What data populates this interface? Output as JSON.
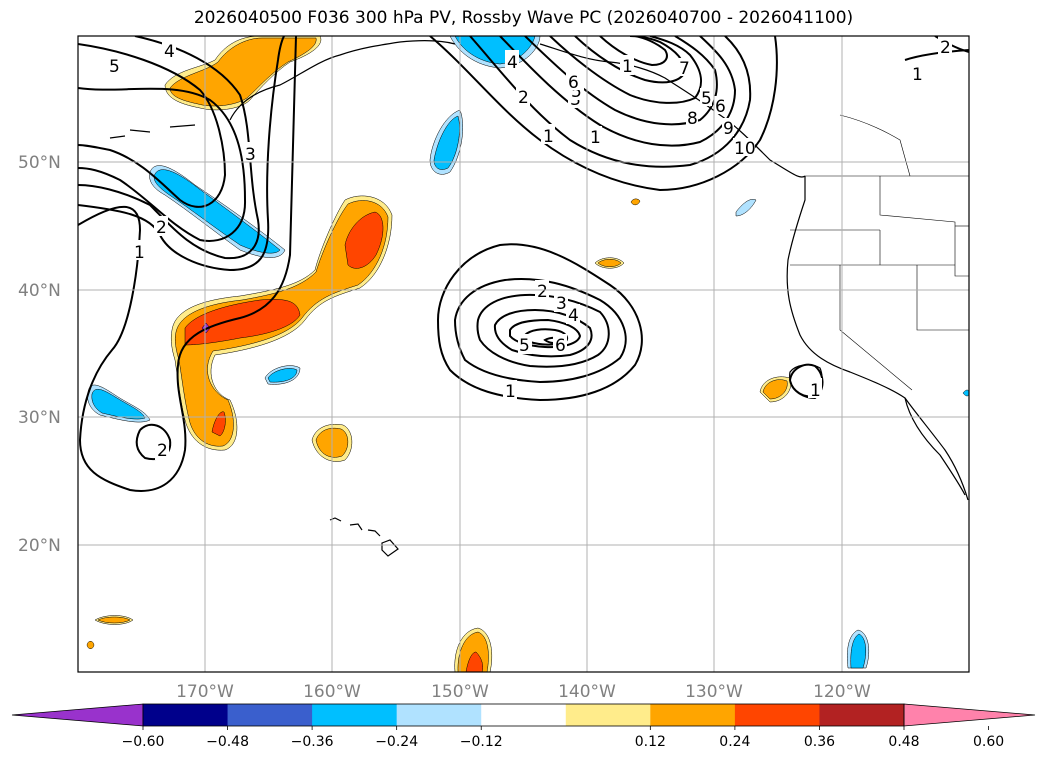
{
  "title": "2026040500 F036 300 hPa PV, Rossby Wave PC (2026040700 - 2026041100)",
  "lat_labels": [
    "50°N",
    "40°N",
    "30°N",
    "20°N"
  ],
  "lon_labels": [
    "170°W",
    "160°W",
    "150°W",
    "140°W",
    "130°W",
    "120°W"
  ],
  "colorbar": {
    "colors": [
      "#9932cc",
      "#00008b",
      "#3a5fcd",
      "#00bfff",
      "#b0e2ff",
      "#ffffff",
      "#ffec8b",
      "#ffa500",
      "#ff4500",
      "#b22222",
      "#ff82ab"
    ],
    "ticks": [
      "−0.60",
      "−0.48",
      "−0.36",
      "−0.24",
      "−0.12",
      "0.12",
      "0.24",
      "0.36",
      "0.48",
      "0.60"
    ]
  },
  "contour_labels": [
    "5",
    "4",
    "3",
    "2",
    "1",
    "2",
    "1",
    "1",
    "2",
    "3",
    "4",
    "5",
    "6",
    "1",
    "2",
    "3",
    "4",
    "5",
    "6",
    "1",
    "1",
    "2",
    "1",
    "1",
    "5",
    "6",
    "7",
    "8",
    "9",
    "10"
  ]
}
